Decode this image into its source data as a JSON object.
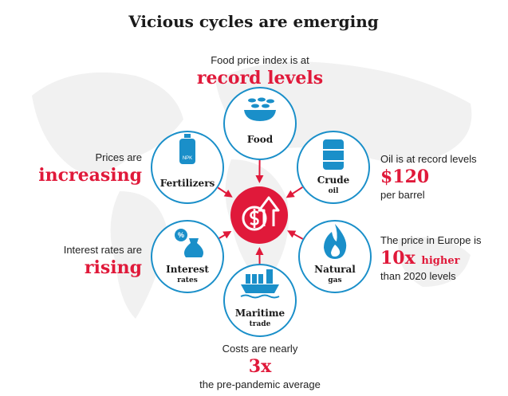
{
  "title": "Vicious cycles are emerging",
  "nodes": [
    {
      "label": "Food",
      "callout": {
        "intro": "Food price index is at",
        "highlight": "record levels"
      }
    },
    {
      "label": "Fertilizers",
      "callout": {
        "intro": "Prices are",
        "highlight": "increasing"
      }
    },
    {
      "label": "Crude",
      "sub": "oil",
      "callout": {
        "intro": "Oil is at record levels",
        "highlight": "$120",
        "outro": "per barrel"
      }
    },
    {
      "label": "Interest",
      "sub": "rates",
      "callout": {
        "intro": "Interest rates are",
        "highlight": "rising"
      }
    },
    {
      "label": "Natural",
      "sub": "gas",
      "callout": {
        "intro": "The price in Europe is",
        "highlight": "10x",
        "suffix": "higher",
        "outro": "than 2020 levels"
      }
    },
    {
      "label": "Maritime",
      "sub": "trade",
      "callout": {
        "intro": "Costs are nearly",
        "highlight": "3x",
        "outro": "the pre-pandemic average"
      }
    }
  ]
}
